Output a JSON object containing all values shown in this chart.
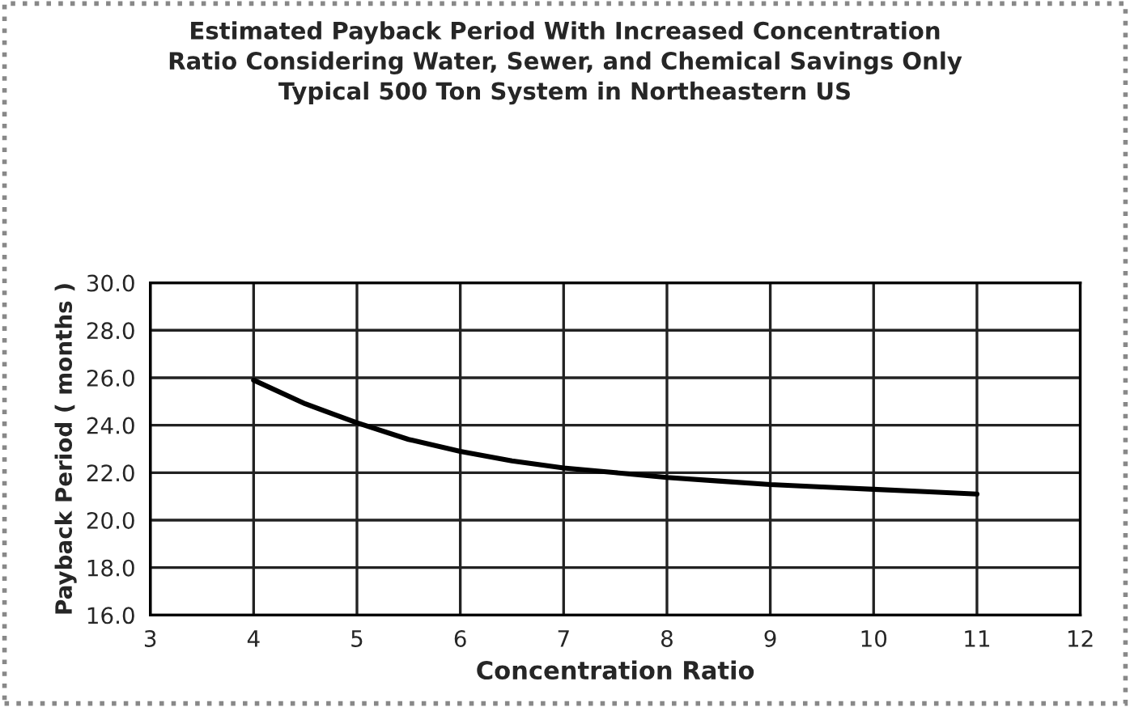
{
  "chart_data": {
    "type": "line",
    "title": "Estimated Payback Period With Increased Concentration\nRatio Considering Water, Sewer, and Chemical Savings Only\nTypical 500 Ton System in Northeastern US",
    "xlabel": "Concentration Ratio",
    "ylabel": "Payback Period ( months )",
    "series": [
      {
        "color": "#000000",
        "x": [
          4,
          4.5,
          5,
          5.5,
          6,
          6.5,
          7,
          7.5,
          8,
          8.5,
          9,
          9.5,
          10,
          10.5,
          11
        ],
        "values": [
          25.9,
          24.9,
          24.1,
          23.4,
          22.9,
          22.5,
          22.2,
          22.0,
          21.8,
          21.65,
          21.5,
          21.4,
          21.3,
          21.2,
          21.1
        ]
      }
    ],
    "xlim": [
      3,
      12
    ],
    "xticks": [
      3,
      4,
      5,
      6,
      7,
      8,
      9,
      10,
      11,
      12
    ],
    "ylim": [
      16,
      30
    ],
    "yticks": [
      {
        "value": 16,
        "label": "16.0"
      },
      {
        "value": 18,
        "label": "18.0"
      },
      {
        "value": 20,
        "label": "20.0"
      },
      {
        "value": 22,
        "label": "22.0"
      },
      {
        "value": 24,
        "label": "24.0"
      },
      {
        "value": 26,
        "label": "26.0"
      },
      {
        "value": 28,
        "label": "28.0"
      },
      {
        "value": 30,
        "label": "30.0"
      }
    ],
    "grid": true,
    "marker": "none",
    "line_style": "solid"
  }
}
